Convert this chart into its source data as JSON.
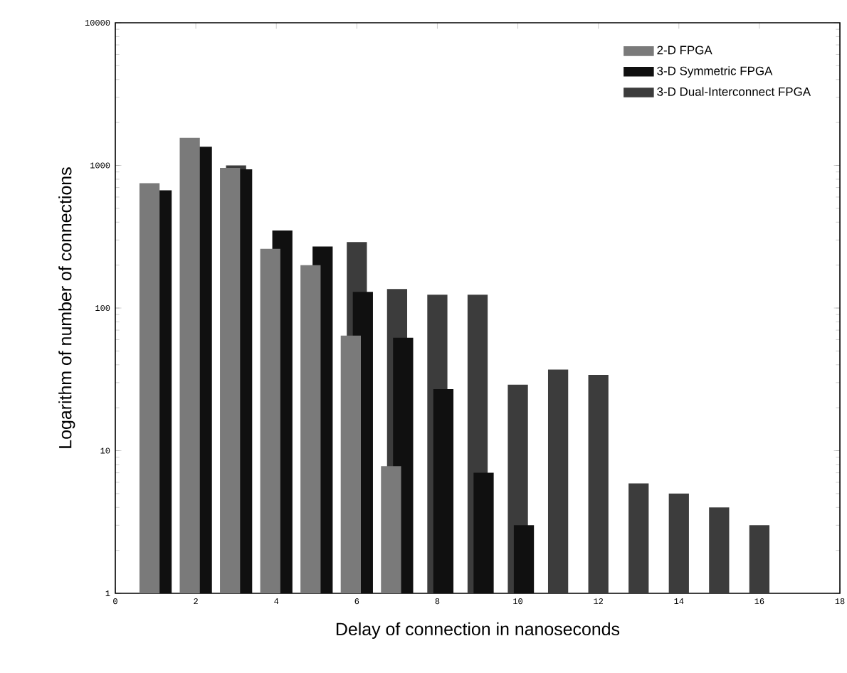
{
  "chart_data": {
    "type": "bar",
    "xlabel": "Delay of connection in nanoseconds",
    "ylabel": "Logarithm of number of connections",
    "xlim": [
      0,
      18
    ],
    "xticks": [
      0,
      2,
      4,
      6,
      8,
      10,
      12,
      14,
      16,
      18
    ],
    "ylim": [
      1,
      10000
    ],
    "yticks": [
      1,
      10,
      100,
      1000,
      10000
    ],
    "log": "y",
    "legend": "top right",
    "series": [
      {
        "name": "2-D FPGA",
        "color": "#7a7a7a",
        "x": [
          1,
          2,
          3,
          4,
          5,
          6,
          7
        ],
        "values": [
          750,
          1560,
          960,
          260,
          200,
          64,
          7.8
        ]
      },
      {
        "name": "3-D Symmetric FPGA",
        "color": "#101010",
        "x": [
          1,
          2,
          3,
          4,
          5,
          6,
          7,
          8,
          9,
          10
        ],
        "values": [
          670,
          1350,
          940,
          350,
          270,
          130,
          62,
          27,
          7,
          3
        ]
      },
      {
        "name": "3-D Dual-Interconnect FPGA",
        "color": "#3c3c3c",
        "x": [
          3,
          6,
          7,
          8,
          9,
          10,
          11,
          12,
          13,
          14,
          15,
          16
        ],
        "values": [
          1000,
          290,
          136,
          124,
          124,
          29,
          37,
          34,
          5.9,
          5,
          4,
          3
        ]
      }
    ]
  }
}
